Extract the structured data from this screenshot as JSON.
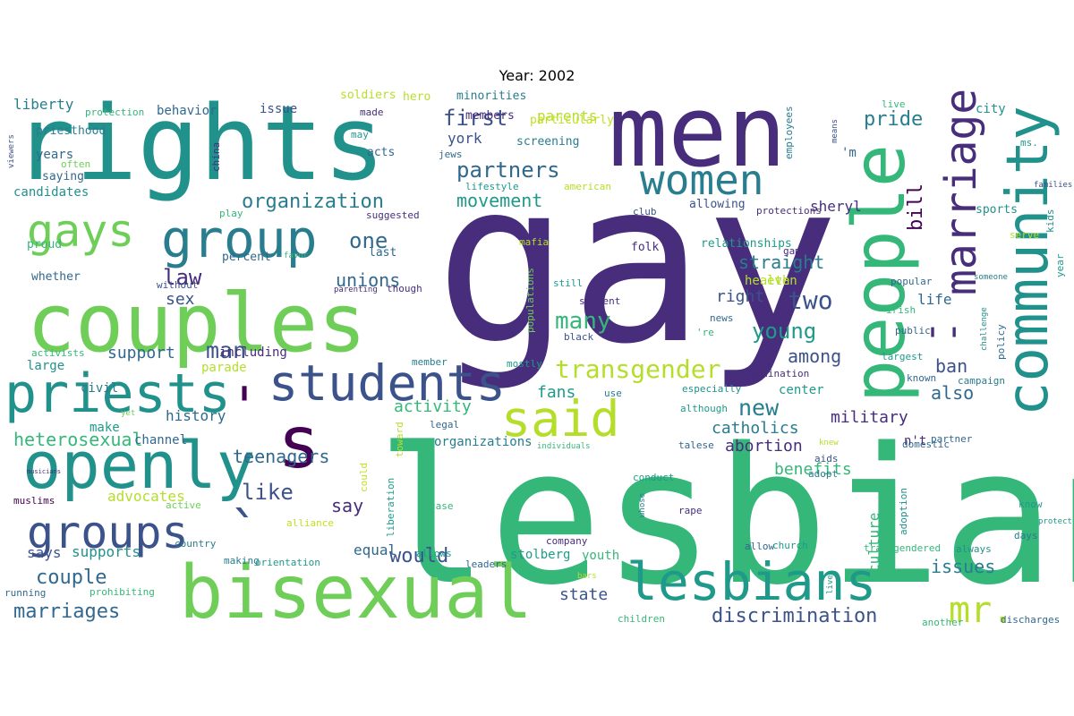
{
  "title": "Year: 2002",
  "palette": {
    "d": "#440154",
    "p": "#472d7b",
    "i": "#3b528b",
    "b": "#31688e",
    "t": "#287d8e",
    "c": "#1f9a8a",
    "g": "#21918c",
    "m": "#35b779",
    "l": "#6ece58",
    "y": "#b5de2b",
    "v": "#c2df23"
  },
  "words": [
    {
      "text": "gay"
    },
    {
      "text": "lesbian"
    },
    {
      "text": "rights"
    },
    {
      "text": "men"
    },
    {
      "text": "couples"
    },
    {
      "text": "bisexual"
    },
    {
      "text": "people"
    },
    {
      "text": "openly"
    },
    {
      "text": "community"
    },
    {
      "text": "priests"
    },
    {
      "text": "students"
    },
    {
      "text": "lesbians"
    },
    {
      "text": "group"
    },
    {
      "text": "women"
    },
    {
      "text": "groups"
    },
    {
      "text": "said"
    },
    {
      "text": "gays"
    },
    {
      "text": "marriage"
    },
    {
      "text": "s"
    },
    {
      "text": "''"
    },
    {
      "text": "`"
    },
    {
      "text": "'"
    },
    {
      "text": "mr."
    },
    {
      "text": "transgender"
    },
    {
      "text": "partners"
    },
    {
      "text": "organization"
    },
    {
      "text": "many"
    },
    {
      "text": "first"
    },
    {
      "text": "man"
    },
    {
      "text": "two"
    },
    {
      "text": "young"
    },
    {
      "text": "new"
    },
    {
      "text": "would"
    },
    {
      "text": "like"
    },
    {
      "text": "law"
    },
    {
      "text": "one"
    },
    {
      "text": "pride"
    },
    {
      "text": "bill"
    },
    {
      "text": "couple"
    },
    {
      "text": "marriages"
    },
    {
      "text": "discrimination"
    },
    {
      "text": "movement"
    },
    {
      "text": "unions"
    },
    {
      "text": "straight"
    },
    {
      "text": "heterosexual"
    },
    {
      "text": "teenagers"
    },
    {
      "text": "say"
    },
    {
      "text": "issues"
    },
    {
      "text": "military"
    },
    {
      "text": "among"
    },
    {
      "text": "also"
    },
    {
      "text": "ban"
    },
    {
      "text": "benefits"
    },
    {
      "text": "abortion"
    },
    {
      "text": "catholics"
    },
    {
      "text": "sex"
    },
    {
      "text": "support"
    },
    {
      "text": "right"
    },
    {
      "text": "activity"
    },
    {
      "text": "fans"
    },
    {
      "text": "health"
    },
    {
      "text": "state"
    },
    {
      "text": "culture"
    },
    {
      "text": "life"
    },
    {
      "text": "parents"
    },
    {
      "text": "york"
    },
    {
      "text": "history"
    },
    {
      "text": "equal"
    },
    {
      "text": "advocates"
    },
    {
      "text": "says"
    },
    {
      "text": "supports"
    },
    {
      "text": "liberty"
    },
    {
      "text": "sheryl"
    },
    {
      "text": "years"
    },
    {
      "text": "candidates"
    },
    {
      "text": "including"
    },
    {
      "text": "civil"
    },
    {
      "text": "parade"
    },
    {
      "text": "large"
    },
    {
      "text": "channel"
    },
    {
      "text": "make"
    },
    {
      "text": "stolberg"
    },
    {
      "text": "organizations"
    },
    {
      "text": "center"
    },
    {
      "text": "youth"
    },
    {
      "text": "city"
    },
    {
      "text": "issue"
    },
    {
      "text": "behavior"
    },
    {
      "text": "minorities"
    },
    {
      "text": "members"
    },
    {
      "text": "screening"
    },
    {
      "text": "soldiers"
    },
    {
      "text": "protection"
    },
    {
      "text": "hero"
    },
    {
      "text": "made"
    },
    {
      "text": "particularly"
    },
    {
      "text": "employees"
    },
    {
      "text": "means"
    },
    {
      "text": "ms."
    },
    {
      "text": "live"
    },
    {
      "text": "catholic"
    },
    {
      "text": "families"
    },
    {
      "text": "priesthood"
    },
    {
      "text": "may"
    },
    {
      "text": "jews"
    },
    {
      "text": "saying"
    },
    {
      "text": "acts"
    },
    {
      "text": "often"
    },
    {
      "text": "viewers"
    },
    {
      "text": "china"
    },
    {
      "text": "play"
    },
    {
      "text": "lifestyle"
    },
    {
      "text": "american"
    },
    {
      "text": "allowing"
    },
    {
      "text": "protections"
    },
    {
      "text": "sports"
    },
    {
      "text": "club"
    },
    {
      "text": "suggested"
    },
    {
      "text": "mafia"
    },
    {
      "text": "relationships"
    },
    {
      "text": "serve"
    },
    {
      "text": "kids"
    },
    {
      "text": "year"
    },
    {
      "text": "proud"
    },
    {
      "text": "last"
    },
    {
      "text": "percent"
    },
    {
      "text": "favor"
    },
    {
      "text": "games"
    },
    {
      "text": "folk"
    },
    {
      "text": "whether"
    },
    {
      "text": "without"
    },
    {
      "text": "parenting"
    },
    {
      "text": "though"
    },
    {
      "text": "popular"
    },
    {
      "text": "someone"
    },
    {
      "text": "even"
    },
    {
      "text": "still"
    },
    {
      "text": "populations"
    },
    {
      "text": "irish"
    },
    {
      "text": "public"
    },
    {
      "text": "news"
    },
    {
      "text": "'re"
    },
    {
      "text": "black"
    },
    {
      "text": "student"
    },
    {
      "text": "challenge"
    },
    {
      "text": "policy"
    },
    {
      "text": "activists"
    },
    {
      "text": "member"
    },
    {
      "text": "mostly"
    },
    {
      "text": "ordination"
    },
    {
      "text": "largest"
    },
    {
      "text": "known"
    },
    {
      "text": "campaign"
    },
    {
      "text": "especially"
    },
    {
      "text": "use"
    },
    {
      "text": "musicians"
    },
    {
      "text": "yet"
    },
    {
      "text": "toward"
    },
    {
      "text": "although"
    },
    {
      "text": "partner"
    },
    {
      "text": "legal"
    },
    {
      "text": "could"
    },
    {
      "text": "individuals"
    },
    {
      "text": "talese"
    },
    {
      "text": "knew"
    },
    {
      "text": "domestic"
    },
    {
      "text": "aids"
    },
    {
      "text": "adopt"
    },
    {
      "text": "conduct"
    },
    {
      "text": "whose"
    },
    {
      "text": "liberation"
    },
    {
      "text": "muslims"
    },
    {
      "text": "active"
    },
    {
      "text": "case"
    },
    {
      "text": "rape"
    },
    {
      "text": "know"
    },
    {
      "text": "consumers"
    },
    {
      "text": "protect"
    },
    {
      "text": "adoption"
    },
    {
      "text": "days"
    },
    {
      "text": "allow"
    },
    {
      "text": "country"
    },
    {
      "text": "alliance"
    },
    {
      "text": "company"
    },
    {
      "text": "church"
    },
    {
      "text": "allows"
    },
    {
      "text": "making"
    },
    {
      "text": "orientation"
    },
    {
      "text": "leaders"
    },
    {
      "text": "transgendered"
    },
    {
      "text": "always"
    },
    {
      "text": "running"
    },
    {
      "text": "prohibiting"
    },
    {
      "text": "bars"
    },
    {
      "text": "lives"
    },
    {
      "text": "children"
    },
    {
      "text": "another"
    },
    {
      "text": "discharges"
    },
    {
      "text": "n't"
    },
    {
      "text": "'m"
    }
  ]
}
